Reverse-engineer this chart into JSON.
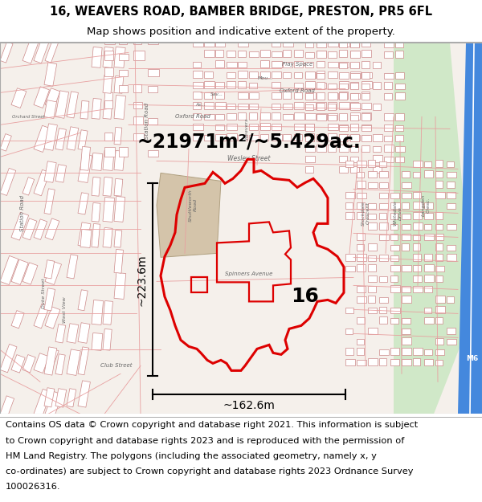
{
  "title_line1": "16, WEAVERS ROAD, BAMBER BRIDGE, PRESTON, PR5 6FL",
  "title_line2": "Map shows position and indicative extent of the property.",
  "area_text": "~21971m²/~5.429ac.",
  "label_number": "16",
  "dim_horizontal": "~162.6m",
  "dim_vertical": "~223.6m",
  "footer_lines": [
    "Contains OS data © Crown copyright and database right 2021. This information is subject",
    "to Crown copyright and database rights 2023 and is reproduced with the permission of",
    "HM Land Registry. The polygons (including the associated geometry, namely x, y",
    "co-ordinates) are subject to Crown copyright and database rights 2023 Ordnance Survey",
    "100026316."
  ],
  "title_fontsize": 10.5,
  "subtitle_fontsize": 9.5,
  "area_fontsize": 17,
  "label_fontsize": 18,
  "dim_fontsize": 10,
  "footer_fontsize": 8.2,
  "map_bg": "#f5f0eb",
  "road_color": "#e8a0a0",
  "building_edge": "#cc8888",
  "building_face": "#ffffff",
  "prop_edge": "#dd0000",
  "prop_face_alpha": 0.0,
  "m6_color": "#4488dd",
  "green_color": "#d0e8c8",
  "school_color": "#d4c4aa"
}
